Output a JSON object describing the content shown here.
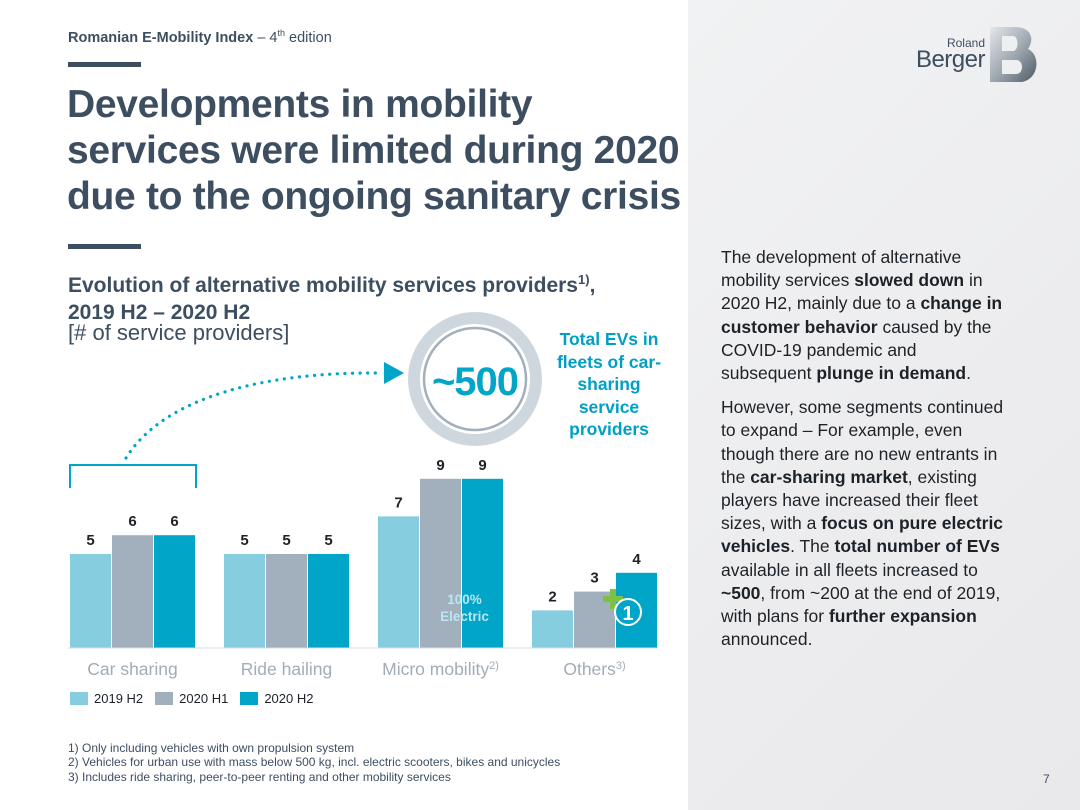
{
  "header": {
    "edition_bold": "Romanian E-Mobility Index",
    "edition_rest": " – 4",
    "edition_sup": "th",
    "edition_tail": " edition"
  },
  "logo": {
    "line1": "Roland",
    "line2": "Berger"
  },
  "title": "Developments in mobility services were limited during 2020 due to the ongoing sanitary crisis",
  "subtitle": {
    "line1": "Evolution of alternative mobility services providers",
    "line1_sup": "1)",
    "line1_tail": ",",
    "line2": "2019 H2 – 2020 H2",
    "units": "[# of service providers]"
  },
  "callout": {
    "value": "~500",
    "text": "Total EVs in fleets of car-sharing service providers"
  },
  "bar_annotation": {
    "line1": "100%",
    "line2": "Electric",
    "plus_label": "1"
  },
  "chart_data": {
    "type": "bar",
    "title": "Evolution of alternative mobility services providers, 2019 H2 – 2020 H2",
    "ylabel": "# of service providers",
    "categories": [
      "Car sharing",
      "Ride hailing",
      "Micro mobility",
      "Others"
    ],
    "category_sups": [
      "",
      "",
      "2)",
      "3)"
    ],
    "series": [
      {
        "name": "2019 H2",
        "values": [
          5,
          5,
          7,
          2
        ],
        "color": "#86cde0"
      },
      {
        "name": "2020 H1",
        "values": [
          6,
          5,
          9,
          3
        ],
        "color": "#a2b0bd"
      },
      {
        "name": "2020 H2",
        "values": [
          6,
          5,
          9,
          4
        ],
        "color": "#00a5c7"
      }
    ],
    "ylim": [
      0,
      9
    ],
    "grid": false,
    "legend": "bottom-left"
  },
  "body": {
    "p1": [
      {
        "t": "The development of alternative mobility services ",
        "b": false
      },
      {
        "t": "slowed down",
        "b": true
      },
      {
        "t": " in 2020 H2, mainly due to a ",
        "b": false
      },
      {
        "t": "change in customer behavior",
        "b": true
      },
      {
        "t": " caused by the COVID-19 pandemic and subsequent ",
        "b": false
      },
      {
        "t": "plunge in demand",
        "b": true
      },
      {
        "t": ".",
        "b": false
      }
    ],
    "p2": [
      {
        "t": "However, some segments continued to expand – For example, even though there are no new entrants in the ",
        "b": false
      },
      {
        "t": "car-sharing market",
        "b": true
      },
      {
        "t": ", existing players have increased their fleet sizes, with a ",
        "b": false
      },
      {
        "t": "focus on pure electric vehicles",
        "b": true
      },
      {
        "t": ". The ",
        "b": false
      },
      {
        "t": "total number of EVs",
        "b": true
      },
      {
        "t": " available in all fleets increased to ",
        "b": false
      },
      {
        "t": "~500",
        "b": true
      },
      {
        "t": ", from ~200 at the end of 2019, with plans for ",
        "b": false
      },
      {
        "t": "further expansion",
        "b": true
      },
      {
        "t": " announced.",
        "b": false
      }
    ]
  },
  "footnotes": [
    "1) Only including vehicles with own propulsion system",
    "2) Vehicles for urban use with mass below 500 kg, incl. electric scooters, bikes and unicycles",
    "3) Includes ride sharing, peer-to-peer renting and other mobility services"
  ],
  "page_number": "7",
  "colors": {
    "navy": "#3d4e61",
    "accent": "#00a5c7",
    "plus": "#7cc242",
    "ring": "#cfd7de"
  }
}
